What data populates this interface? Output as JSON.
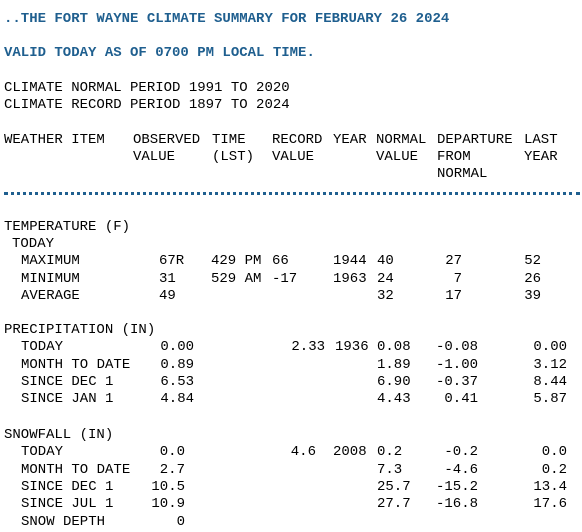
{
  "header": {
    "title": "..THE FORT WAYNE CLIMATE SUMMARY FOR FEBRUARY 26 2024",
    "valid": "VALID TODAY AS OF 0700 PM LOCAL TIME."
  },
  "periods": [
    "CLIMATE NORMAL PERIOD 1991 TO 2020",
    "CLIMATE RECORD PERIOD 1897 TO 2024"
  ],
  "columns": {
    "item": [
      "WEATHER ITEM"
    ],
    "observed": [
      "OBSERVED",
      "VALUE"
    ],
    "time": [
      "TIME",
      "(LST)"
    ],
    "record": [
      "RECORD",
      "VALUE"
    ],
    "year": [
      "YEAR"
    ],
    "normal": [
      "NORMAL",
      "VALUE"
    ],
    "departure": [
      "DEPARTURE",
      "FROM",
      "NORMAL"
    ],
    "last": [
      "LAST",
      "YEAR"
    ]
  },
  "sections": [
    {
      "title": "TEMPERATURE (F)",
      "subtitle": "TODAY",
      "rows": [
        {
          "item": "MAXIMUM",
          "observed": "67R",
          "time": "429 PM",
          "record": "66",
          "year": "1944",
          "normal": "40",
          "departure": "27",
          "last": "52"
        },
        {
          "item": "MINIMUM",
          "observed": "31",
          "time": "529 AM",
          "record": "-17",
          "year": "1963",
          "normal": "24",
          "departure": "7",
          "last": "26"
        },
        {
          "item": "AVERAGE",
          "observed": "49",
          "normal": "32",
          "departure": "17",
          "last": "39"
        }
      ]
    },
    {
      "title": "PRECIPITATION (IN)",
      "rows": [
        {
          "item": "TODAY",
          "observed": "0.00",
          "record": "2.33",
          "year": "1936",
          "normal": "0.08",
          "departure": "-0.08",
          "last": "0.00"
        },
        {
          "item": "MONTH TO DATE",
          "observed": "0.89",
          "normal": "1.89",
          "departure": "-1.00",
          "last": "3.12"
        },
        {
          "item": "SINCE DEC 1",
          "observed": "6.53",
          "normal": "6.90",
          "departure": "-0.37",
          "last": "8.44"
        },
        {
          "item": "SINCE JAN 1",
          "observed": "4.84",
          "normal": "4.43",
          "departure": "0.41",
          "last": "5.87"
        }
      ]
    },
    {
      "title": "SNOWFALL (IN)",
      "rows": [
        {
          "item": "TODAY",
          "observed": "0.0",
          "record": "4.6",
          "year": "2008",
          "normal": "0.2",
          "departure": "-0.2",
          "last": "0.0"
        },
        {
          "item": "MONTH TO DATE",
          "observed": "2.7",
          "normal": "7.3",
          "departure": "-4.6",
          "last": "0.2"
        },
        {
          "item": "SINCE DEC 1",
          "observed": "10.5",
          "normal": "25.7",
          "departure": "-15.2",
          "last": "13.4"
        },
        {
          "item": "SINCE JUL 1",
          "observed": "10.9",
          "normal": "27.7",
          "departure": "-16.8",
          "last": "17.6"
        },
        {
          "item": "SNOW DEPTH",
          "observed": "0"
        }
      ]
    }
  ]
}
